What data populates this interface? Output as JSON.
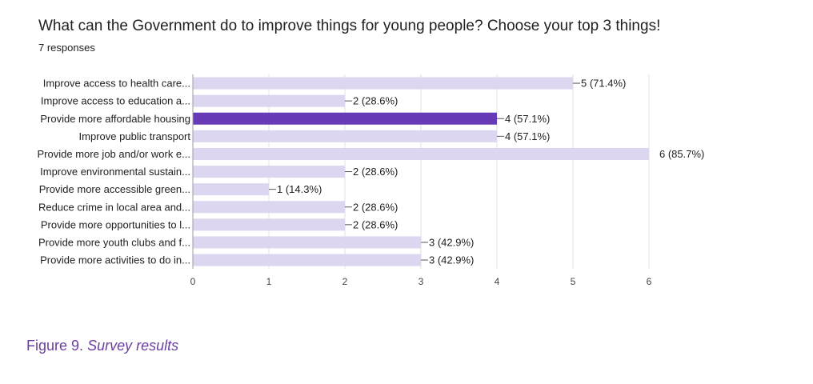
{
  "header": {
    "title": "What can the Government do to improve things for young people? Choose your top 3 things!",
    "responses": "7 responses"
  },
  "caption": {
    "label": "Figure 9.",
    "text": "Survey results"
  },
  "colors": {
    "bar": "#dcd6f0",
    "highlight": "#673ab7",
    "grid": "#e0e0e0",
    "axis": "#9e9e9e",
    "text": "#202124",
    "caption": "#6b3fa0"
  },
  "chart_data": {
    "type": "bar",
    "orientation": "horizontal",
    "categories": [
      "Improve access to health care...",
      "Improve access to education a...",
      "Provide more affordable housing",
      "Improve public transport",
      "Provide more job and/or work e...",
      "Improve environmental sustain...",
      "Provide more accessible green...",
      "Reduce crime in local area and...",
      "Provide more opportunities to l...",
      "Provide more youth clubs and f...",
      "Provide more activities to do in..."
    ],
    "values": [
      5,
      2,
      4,
      4,
      6,
      2,
      1,
      2,
      2,
      3,
      3
    ],
    "value_labels": [
      "5 (71.4%)",
      "2 (28.6%)",
      "4 (57.1%)",
      "4 (57.1%)",
      "6 (85.7%)",
      "2 (28.6%)",
      "1 (14.3%)",
      "2 (28.6%)",
      "2 (28.6%)",
      "3 (42.9%)",
      "3 (42.9%)"
    ],
    "highlight_index": 2,
    "xlim": [
      0,
      6
    ],
    "xticks": [
      0,
      1,
      2,
      3,
      4,
      5,
      6
    ],
    "grid": true,
    "legend": "none"
  }
}
